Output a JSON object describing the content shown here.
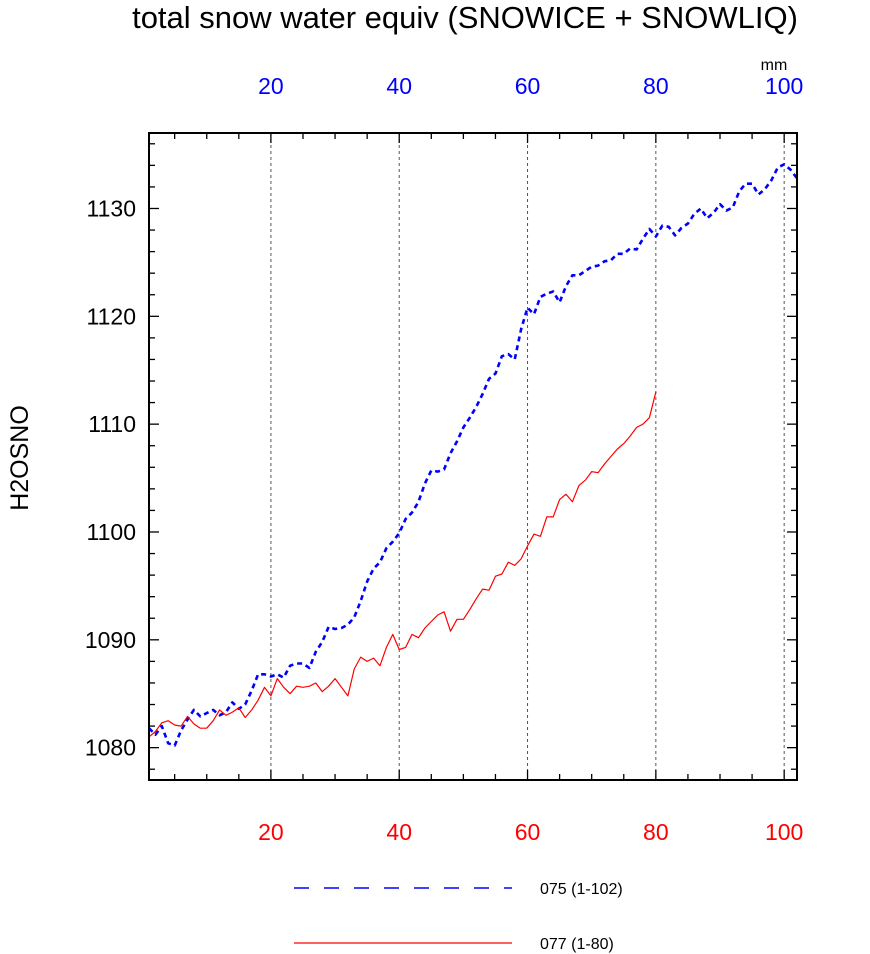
{
  "chart_data": {
    "type": "line",
    "title": "total snow water equiv (SNOWICE + SNOWLIQ)",
    "ylabel": "H2OSNO",
    "units": "mm",
    "ylim": [
      1077,
      1137
    ],
    "yticks": [
      1080,
      1090,
      1100,
      1110,
      1120,
      1130
    ],
    "grid": "vertical dashed lines at x = 20, 40, 60, 80, 100",
    "bottom_axis": {
      "color": "#ff0000",
      "xlim": [
        1,
        102
      ],
      "ticks": [
        20,
        40,
        60,
        80,
        100
      ]
    },
    "top_axis": {
      "color": "#0000ff",
      "xlim": [
        1,
        102
      ],
      "ticks": [
        20,
        40,
        60,
        80,
        100
      ]
    },
    "legend": {
      "placement": "bottom"
    },
    "series": [
      {
        "name": "075 (1-102)",
        "color": "#0000ff",
        "style": "dashed",
        "axis": "top",
        "x": [
          1,
          2,
          3,
          4,
          5,
          6,
          7,
          8,
          9,
          10,
          11,
          12,
          13,
          14,
          15,
          16,
          17,
          18,
          19,
          20,
          21,
          22,
          23,
          24,
          25,
          26,
          27,
          28,
          29,
          30,
          31,
          32,
          33,
          34,
          35,
          36,
          37,
          38,
          39,
          40,
          41,
          42,
          43,
          44,
          45,
          46,
          47,
          48,
          49,
          50,
          51,
          52,
          53,
          54,
          55,
          56,
          57,
          58,
          59,
          60,
          61,
          62,
          63,
          64,
          65,
          66,
          67,
          68,
          69,
          70,
          71,
          72,
          73,
          74,
          75,
          76,
          77,
          78,
          79,
          80,
          81,
          82,
          83,
          84,
          85,
          86,
          87,
          88,
          89,
          90,
          91,
          92,
          93,
          94,
          95,
          96,
          97,
          98,
          99,
          100,
          101,
          102
        ],
        "values": [
          1081.8,
          1081.2,
          1082.0,
          1080.4,
          1080.2,
          1081.6,
          1082.6,
          1083.5,
          1082.9,
          1083.2,
          1083.5,
          1083.0,
          1083.3,
          1084.2,
          1083.6,
          1084.0,
          1085.3,
          1086.8,
          1086.8,
          1086.6,
          1086.8,
          1086.5,
          1087.6,
          1087.8,
          1087.8,
          1087.4,
          1088.9,
          1089.8,
          1091.2,
          1091.0,
          1091.1,
          1091.4,
          1092.1,
          1093.6,
          1095.4,
          1096.6,
          1097.2,
          1098.5,
          1099.1,
          1099.9,
          1101.2,
          1101.8,
          1102.8,
          1104.5,
          1105.7,
          1105.6,
          1105.8,
          1107.3,
          1108.4,
          1109.7,
          1110.6,
          1111.6,
          1112.8,
          1114.2,
          1114.7,
          1116.3,
          1116.5,
          1116.0,
          1118.8,
          1120.8,
          1120.2,
          1121.8,
          1122.1,
          1122.3,
          1121.3,
          1122.8,
          1123.8,
          1123.8,
          1124.2,
          1124.6,
          1124.7,
          1125.1,
          1125.2,
          1125.8,
          1125.8,
          1126.3,
          1126.2,
          1127.2,
          1128.1,
          1127.4,
          1128.4,
          1128.3,
          1127.5,
          1128.2,
          1128.6,
          1129.5,
          1130.0,
          1129.1,
          1129.6,
          1130.4,
          1129.8,
          1130.1,
          1131.6,
          1132.3,
          1132.3,
          1131.3,
          1131.8,
          1132.6,
          1133.8,
          1134.1,
          1133.6,
          1132.8
        ]
      },
      {
        "name": "077 (1-80)",
        "color": "#ff0000",
        "style": "solid",
        "axis": "bottom",
        "x": [
          1,
          2,
          3,
          4,
          5,
          6,
          7,
          8,
          9,
          10,
          11,
          12,
          13,
          14,
          15,
          16,
          17,
          18,
          19,
          20,
          21,
          22,
          23,
          24,
          25,
          26,
          27,
          28,
          29,
          30,
          31,
          32,
          33,
          34,
          35,
          36,
          37,
          38,
          39,
          40,
          41,
          42,
          43,
          44,
          45,
          46,
          47,
          48,
          49,
          50,
          51,
          52,
          53,
          54,
          55,
          56,
          57,
          58,
          59,
          60,
          61,
          62,
          63,
          64,
          65,
          66,
          67,
          68,
          69,
          70,
          71,
          72,
          73,
          74,
          75,
          76,
          77,
          78,
          79,
          80
        ],
        "values": [
          1081.0,
          1081.5,
          1082.3,
          1082.5,
          1082.1,
          1082.0,
          1082.9,
          1082.2,
          1081.8,
          1081.8,
          1082.5,
          1083.5,
          1083.0,
          1083.3,
          1083.7,
          1082.8,
          1083.5,
          1084.4,
          1085.6,
          1084.8,
          1086.4,
          1085.6,
          1085.0,
          1085.7,
          1085.6,
          1085.7,
          1086.0,
          1085.2,
          1085.7,
          1086.4,
          1085.6,
          1084.8,
          1087.3,
          1088.4,
          1088.0,
          1088.3,
          1087.6,
          1089.3,
          1090.5,
          1089.1,
          1089.3,
          1090.5,
          1090.2,
          1091.1,
          1091.7,
          1092.3,
          1092.6,
          1090.8,
          1091.9,
          1091.9,
          1092.8,
          1093.8,
          1094.7,
          1094.6,
          1095.9,
          1096.1,
          1097.2,
          1096.9,
          1097.5,
          1098.7,
          1099.8,
          1099.6,
          1101.4,
          1101.4,
          1103.0,
          1103.5,
          1102.8,
          1104.3,
          1104.8,
          1105.6,
          1105.5,
          1106.3,
          1107.0,
          1107.7,
          1108.2,
          1108.9,
          1109.7,
          1110.0,
          1110.6,
          1113.0
        ]
      }
    ]
  }
}
